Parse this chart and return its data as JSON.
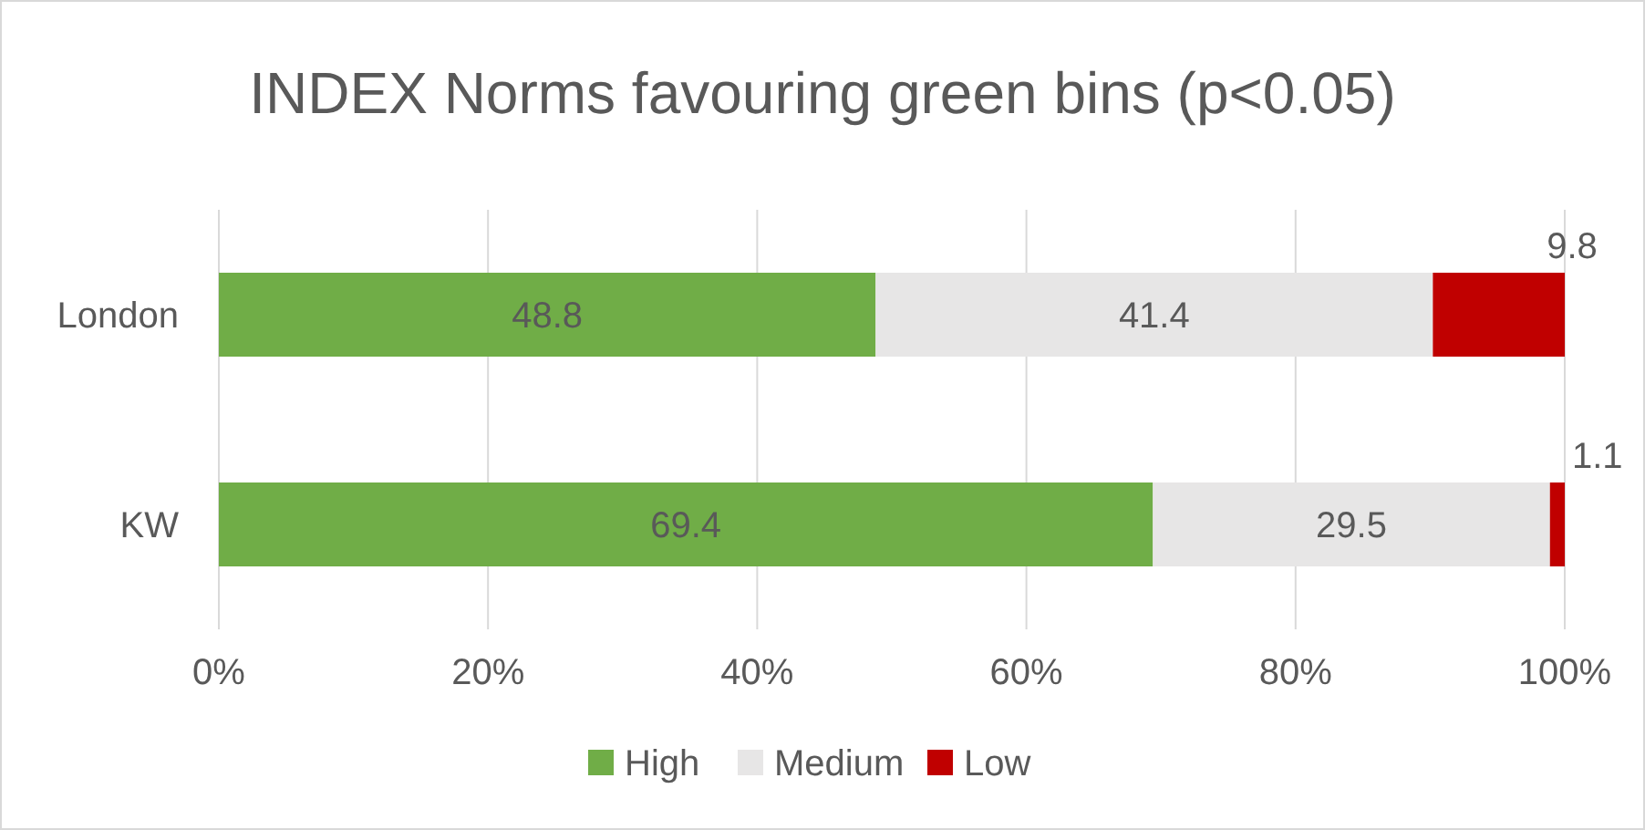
{
  "chart_data": {
    "type": "bar",
    "orientation": "horizontal",
    "stacked": true,
    "title": "INDEX Norms favouring green bins (p<0.05)",
    "categories": [
      "London",
      "KW"
    ],
    "series": [
      {
        "name": "High",
        "color": "#70ad47",
        "values": [
          48.8,
          69.4
        ]
      },
      {
        "name": "Medium",
        "color": "#e7e6e6",
        "values": [
          41.4,
          29.5
        ]
      },
      {
        "name": "Low",
        "color": "#c00000",
        "values": [
          9.8,
          1.1
        ]
      }
    ],
    "xlim": [
      0,
      100
    ],
    "xticks": [
      {
        "value": 0,
        "label": "0%"
      },
      {
        "value": 20,
        "label": "20%"
      },
      {
        "value": 40,
        "label": "40%"
      },
      {
        "value": 60,
        "label": "60%"
      },
      {
        "value": 80,
        "label": "80%"
      },
      {
        "value": 100,
        "label": "100%"
      }
    ],
    "grid": "x",
    "legend": "bottom",
    "data_labels": true
  }
}
